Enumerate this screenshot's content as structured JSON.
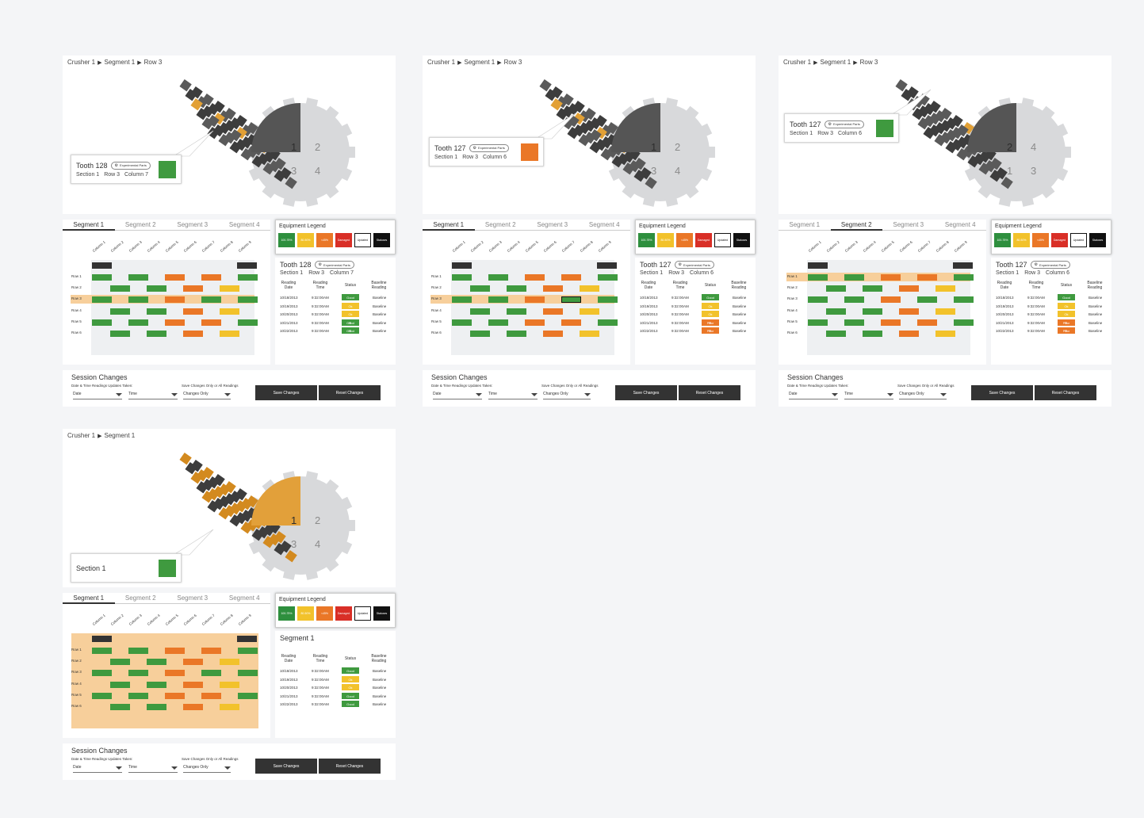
{
  "colors": {
    "good": "#3f9a3f",
    "ok": "#f2c22b",
    "warn": "#ea7727",
    "damaged": "#d92f27",
    "dark": "#333333",
    "highlight": "#f7cf9b"
  },
  "legend": {
    "title": "Equipment Legend",
    "items": [
      {
        "label": "100-75%",
        "color": "#2e8f3e"
      },
      {
        "label": "80-50%",
        "color": "#f2c22b"
      },
      {
        "label": "<45%",
        "color": "#ea7727"
      },
      {
        "label": "Damaged",
        "color": "#d92f27"
      },
      {
        "label": "Updated",
        "color": "#ffffff"
      },
      {
        "label": "Statuses",
        "color": "#111111"
      }
    ]
  },
  "tabs": [
    "Segment 1",
    "Segment 2",
    "Segment 3",
    "Segment 4"
  ],
  "columns": [
    "Column 1",
    "Column 2",
    "Column 3",
    "Column 4",
    "Column 5",
    "Column 6",
    "Column 7",
    "Column 8",
    "Column 9"
  ],
  "rows": [
    "Row 1",
    "Row 2",
    "Row 3",
    "Row 4",
    "Row 5",
    "Row 6"
  ],
  "table_headers": {
    "date": "Reading Date",
    "time": "Reading Time",
    "status": "Status",
    "baseline": "Baseline Reading"
  },
  "session": {
    "title": "Session Changes",
    "date_label": "Date & Time Readings Updates Taken:",
    "changes_label": "Save Changes Only or All Readings",
    "date_value": "Date",
    "time_value": "Time",
    "changes_value": "Changes Only",
    "save": "Save Changes",
    "reset": "Reset Changes"
  },
  "panels": [
    {
      "breadcrumb": [
        "Crusher 1",
        "Segment 1",
        "Row 3"
      ],
      "active_tab": 0,
      "sectors": [
        "1",
        "2",
        "3",
        "4"
      ],
      "callout": {
        "title": "Tooth 128",
        "pill": "Experimental Parts",
        "sub": [
          "Section 1",
          "Row 3",
          "Column 7"
        ],
        "color": "#3f9a3f"
      },
      "detail": {
        "title": "Tooth 128",
        "pill": "Experimental Parts",
        "sub": [
          "Section 1",
          "Row 3",
          "Column 7"
        ],
        "rows": [
          {
            "date": "10/18/2013",
            "time": "9:32:00AM",
            "status": "Good",
            "status_color": "#3f9a3f",
            "icon": "",
            "baseline": "Baseline"
          },
          {
            "date": "10/19/2013",
            "time": "9:32:00AM",
            "status": "Ok",
            "status_color": "#f2c22b",
            "icon": "",
            "baseline": "Baseline"
          },
          {
            "date": "10/20/2013",
            "time": "9:32:00AM",
            "status": "Ok",
            "status_color": "#f2c22b",
            "icon": "",
            "baseline": "Baseline"
          },
          {
            "date": "10/21/2013",
            "time": "9:32:00AM",
            "status": "Good",
            "status_color": "#3f9a3f",
            "icon": "⚙",
            "baseline": "Baseline"
          },
          {
            "date": "10/22/2013",
            "time": "9:32:00AM",
            "status": "Good",
            "status_color": "#3f9a3f",
            "icon": "⚙",
            "baseline": "Baseline"
          }
        ]
      }
    },
    {
      "breadcrumb": [
        "Crusher 1",
        "Segment 1",
        "Row 3"
      ],
      "active_tab": 0,
      "sectors": [
        "1",
        "2",
        "3",
        "4"
      ],
      "callout": {
        "title": "Tooth 127",
        "pill": "Experimental Parts",
        "sub": [
          "Section 1",
          "Row 3",
          "Column 6"
        ],
        "color": "#ea7727"
      },
      "detail": {
        "title": "Tooth 127",
        "pill": "Experimental Parts",
        "sub": [
          "Section 1",
          "Row 3",
          "Column 6"
        ],
        "rows": [
          {
            "date": "10/18/2013",
            "time": "9:32:00AM",
            "status": "Good",
            "status_color": "#3f9a3f",
            "icon": "",
            "baseline": "Baseline"
          },
          {
            "date": "10/19/2013",
            "time": "9:32:00AM",
            "status": "Ok",
            "status_color": "#f2c22b",
            "icon": "",
            "baseline": "Baseline"
          },
          {
            "date": "10/20/2013",
            "time": "9:32:00AM",
            "status": "Ok",
            "status_color": "#f2c22b",
            "icon": "",
            "baseline": "Baseline"
          },
          {
            "date": "10/21/2013",
            "time": "9:32:00AM",
            "status": "Poor",
            "status_color": "#ea7727",
            "icon": "⚙",
            "baseline": "Baseline"
          },
          {
            "date": "10/22/2013",
            "time": "9:32:00AM",
            "status": "Poor",
            "status_color": "#ea7727",
            "icon": "⚙",
            "baseline": "Baseline"
          }
        ]
      }
    },
    {
      "breadcrumb": [
        "Crusher 1",
        "Segment 1",
        "Row 3"
      ],
      "active_tab": 1,
      "sectors": [
        "2",
        "4",
        "1",
        "3"
      ],
      "callout": {
        "title": "Tooth 127",
        "pill": "Experimental Parts",
        "sub": [
          "Section 1",
          "Row 3",
          "Column 6"
        ],
        "color": "#3f9a3f"
      },
      "detail": {
        "title": "Tooth 127",
        "pill": "Experimental Parts",
        "sub": [
          "Section 1",
          "Row 3",
          "Column 6"
        ],
        "rows": [
          {
            "date": "10/18/2013",
            "time": "9:32:00AM",
            "status": "Good",
            "status_color": "#3f9a3f",
            "icon": "",
            "baseline": "Baseline"
          },
          {
            "date": "10/19/2013",
            "time": "9:32:00AM",
            "status": "Ok",
            "status_color": "#f2c22b",
            "icon": "",
            "baseline": "Baseline"
          },
          {
            "date": "10/20/2013",
            "time": "9:32:00AM",
            "status": "Ok",
            "status_color": "#f2c22b",
            "icon": "",
            "baseline": "Baseline"
          },
          {
            "date": "10/21/2013",
            "time": "9:32:00AM",
            "status": "Poor",
            "status_color": "#ea7727",
            "icon": "⚙",
            "baseline": "Baseline"
          },
          {
            "date": "10/22/2013",
            "time": "9:32:00AM",
            "status": "Poor",
            "status_color": "#ea7727",
            "icon": "⚙",
            "baseline": "Baseline"
          }
        ]
      }
    },
    {
      "breadcrumb": [
        "Crusher 1",
        "Segment 1"
      ],
      "active_tab": 0,
      "sectors": [
        "1",
        "2",
        "3",
        "4"
      ],
      "callout": {
        "title": "Section 1",
        "pill": "",
        "sub": [],
        "color": "#3f9a3f"
      },
      "detail": {
        "title": "Segment 1",
        "pill": "",
        "sub": [],
        "rows": [
          {
            "date": "10/18/2013",
            "time": "9:32:00AM",
            "status": "Good",
            "status_color": "#3f9a3f",
            "icon": "",
            "baseline": "Baseline"
          },
          {
            "date": "10/19/2013",
            "time": "9:32:00AM",
            "status": "Ok",
            "status_color": "#f2c22b",
            "icon": "",
            "baseline": "Baseline"
          },
          {
            "date": "10/20/2013",
            "time": "9:32:00AM",
            "status": "Ok",
            "status_color": "#f2c22b",
            "icon": "",
            "baseline": "Baseline"
          },
          {
            "date": "10/21/2013",
            "time": "9:32:00AM",
            "status": "Good",
            "status_color": "#3f9a3f",
            "icon": "",
            "baseline": "Baseline"
          },
          {
            "date": "10/22/2013",
            "time": "9:32:00AM",
            "status": "Good",
            "status_color": "#3f9a3f",
            "icon": "",
            "baseline": "Baseline"
          }
        ]
      }
    }
  ]
}
